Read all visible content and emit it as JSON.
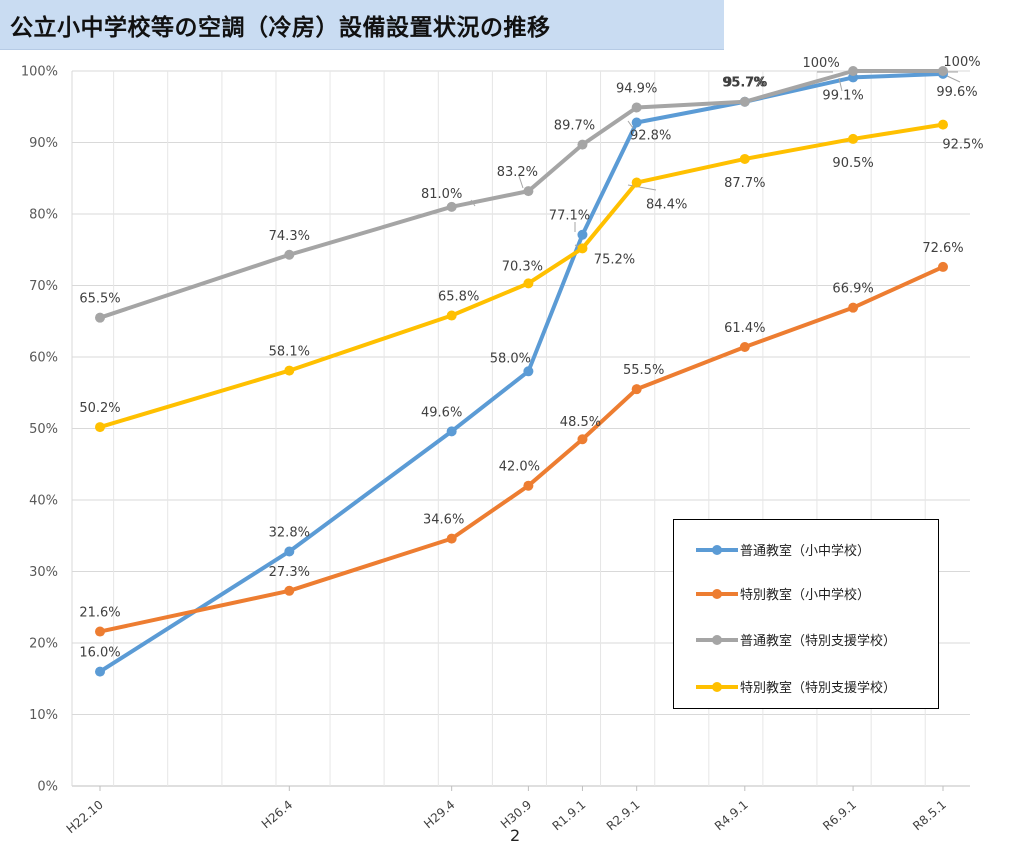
{
  "title": "公立小中学校等の空調（冷房）設備設置状況の推移",
  "page_number": "2",
  "chart_data": {
    "type": "line",
    "categories": [
      "H22.10",
      "H26.4",
      "H29.4",
      "H30.9",
      "R1.9.1",
      "R2.9.1",
      "R4.9.1",
      "R6.9.1",
      "R8.5.1"
    ],
    "x_dates": [
      "2010-10-01",
      "2014-04-01",
      "2017-04-01",
      "2018-09-01",
      "2019-09-01",
      "2020-09-01",
      "2022-09-01",
      "2024-09-01",
      "2026-05-01"
    ],
    "ylim": [
      0,
      100
    ],
    "yticks": [
      "0%",
      "10%",
      "20%",
      "30%",
      "40%",
      "50%",
      "60%",
      "70%",
      "80%",
      "90%",
      "100%"
    ],
    "grid": true,
    "legend_position": "bottom-right",
    "series": [
      {
        "name": "普通教室（小中学校）",
        "color": "#5b9bd5",
        "values": [
          16.0,
          32.8,
          49.6,
          58.0,
          77.1,
          92.8,
          95.7,
          99.1,
          99.6
        ],
        "labels": [
          "16.0%",
          "32.8%",
          "49.6%",
          "58.0%",
          "77.1%",
          "92.8%",
          "95.7%",
          "99.1%",
          "99.6%"
        ]
      },
      {
        "name": "特別教室（小中学校）",
        "color": "#ed7d31",
        "values": [
          21.6,
          27.3,
          34.6,
          42.0,
          48.5,
          55.5,
          61.4,
          66.9,
          72.6
        ],
        "labels": [
          "21.6%",
          "27.3%",
          "34.6%",
          "42.0%",
          "48.5%",
          "55.5%",
          "61.4%",
          "66.9%",
          "72.6%"
        ]
      },
      {
        "name": "普通教室（特別支援学校）",
        "color": "#a5a5a5",
        "values": [
          65.5,
          74.3,
          81.0,
          83.2,
          89.7,
          94.9,
          95.7,
          100,
          100
        ],
        "labels": [
          "65.5%",
          "74.3%",
          "81.0%",
          "83.2%",
          "89.7%",
          "94.9%",
          "95.7%",
          "100%",
          "100%"
        ]
      },
      {
        "name": "特別教室（特別支援学校）",
        "color": "#ffc000",
        "values": [
          50.2,
          58.1,
          65.8,
          70.3,
          75.2,
          84.4,
          87.7,
          90.5,
          92.5
        ],
        "labels": [
          "50.2%",
          "58.1%",
          "65.8%",
          "70.3%",
          "75.2%",
          "84.4%",
          "87.7%",
          "90.5%",
          "92.5%"
        ]
      }
    ]
  }
}
